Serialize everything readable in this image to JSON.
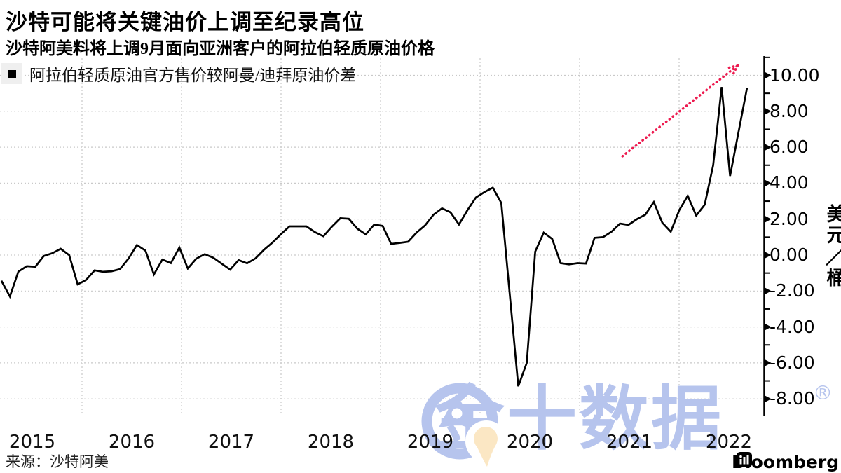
{
  "header": {
    "title": "沙特可能将关键油价上调至纪录高位",
    "subtitle": "沙特阿美料将上调9月面向亚洲客户的阿拉伯轻质原油价格"
  },
  "legend": {
    "label": "阿拉伯轻质原油官方售价较阿曼/迪拜原油价差",
    "marker_color": "#000000"
  },
  "source": {
    "label": "来源：沙特阿美"
  },
  "branding": {
    "bloomberg_label": "Bloomberg",
    "watermark_text": "金十数据",
    "watermark_reg": "®",
    "watermark_color": "#b6c4ed",
    "watermark_accent": "#fbe7c4"
  },
  "chart_data": {
    "type": "line",
    "title": "沙特可能将关键油价上调至纪录高位",
    "subtitle": "沙特阿美料将上调9月面向亚洲客户的阿拉伯轻质原油价格",
    "ylabel": "美元/桶",
    "ylabel_chars": [
      "美",
      "元",
      "／",
      "桶"
    ],
    "grid": {
      "horizontal": true,
      "vertical": true,
      "color": "#c9c9c9"
    },
    "line_color": "#000000",
    "ylim": [
      -8.9,
      11.0
    ],
    "y_ticks": {
      "values": [
        10,
        8,
        6,
        4,
        2,
        0,
        -2,
        -4,
        -6,
        -8
      ],
      "labels": [
        "10.00",
        "8.00",
        "6.00",
        "4.00",
        "2.00",
        "0.00",
        "-2.00",
        "-4.00",
        "-6.00",
        "-8.00"
      ],
      "minor_values": [
        11,
        9,
        7,
        5,
        3,
        1,
        -1,
        -3,
        -5,
        -7
      ]
    },
    "x_ticks": {
      "year_labels": [
        "2015",
        "2016",
        "2017",
        "2018",
        "2019",
        "2020",
        "2021",
        "2022"
      ]
    },
    "x_gridline_years": [
      2016,
      2017,
      2018,
      2019,
      2020,
      2021,
      2022
    ],
    "series": [
      {
        "name": "阿拉伯轻质原油官方售价较阿曼/迪拜原油价差",
        "unit": "美元/桶",
        "frequency": "monthly",
        "start": "2015-04",
        "end": "2022-08",
        "values": [
          -1.43,
          -2.3,
          -0.92,
          -0.62,
          -0.65,
          -0.05,
          0.1,
          0.35,
          0.0,
          -1.63,
          -1.38,
          -0.85,
          -0.93,
          -0.9,
          -0.78,
          -0.2,
          0.56,
          0.25,
          -1.08,
          -0.25,
          -0.45,
          0.42,
          -0.75,
          -0.2,
          0.05,
          -0.15,
          -0.48,
          -0.81,
          -0.28,
          -0.46,
          -0.18,
          0.3,
          0.7,
          1.17,
          1.6,
          1.6,
          1.6,
          1.28,
          1.05,
          1.58,
          2.05,
          2.02,
          1.47,
          1.15,
          1.7,
          1.62,
          0.62,
          0.68,
          0.74,
          1.25,
          1.65,
          2.25,
          2.6,
          2.38,
          1.7,
          2.5,
          3.2,
          3.5,
          3.75,
          2.9,
          -2.2,
          -7.3,
          -6.0,
          0.2,
          1.25,
          0.9,
          -0.45,
          -0.52,
          -0.45,
          -0.47,
          0.96,
          1.0,
          1.3,
          1.75,
          1.68,
          2.0,
          2.25,
          2.95,
          1.8,
          1.3,
          2.5,
          3.3,
          2.2,
          2.8,
          5.0,
          9.35,
          4.4,
          6.85,
          9.3
        ]
      }
    ],
    "annotation": {
      "type": "trend-arrow",
      "color": "#ed1a4f",
      "from": {
        "month_index": 73.3,
        "value": 5.5
      },
      "to": {
        "month_index": 86.9,
        "value": 10.55
      }
    }
  }
}
